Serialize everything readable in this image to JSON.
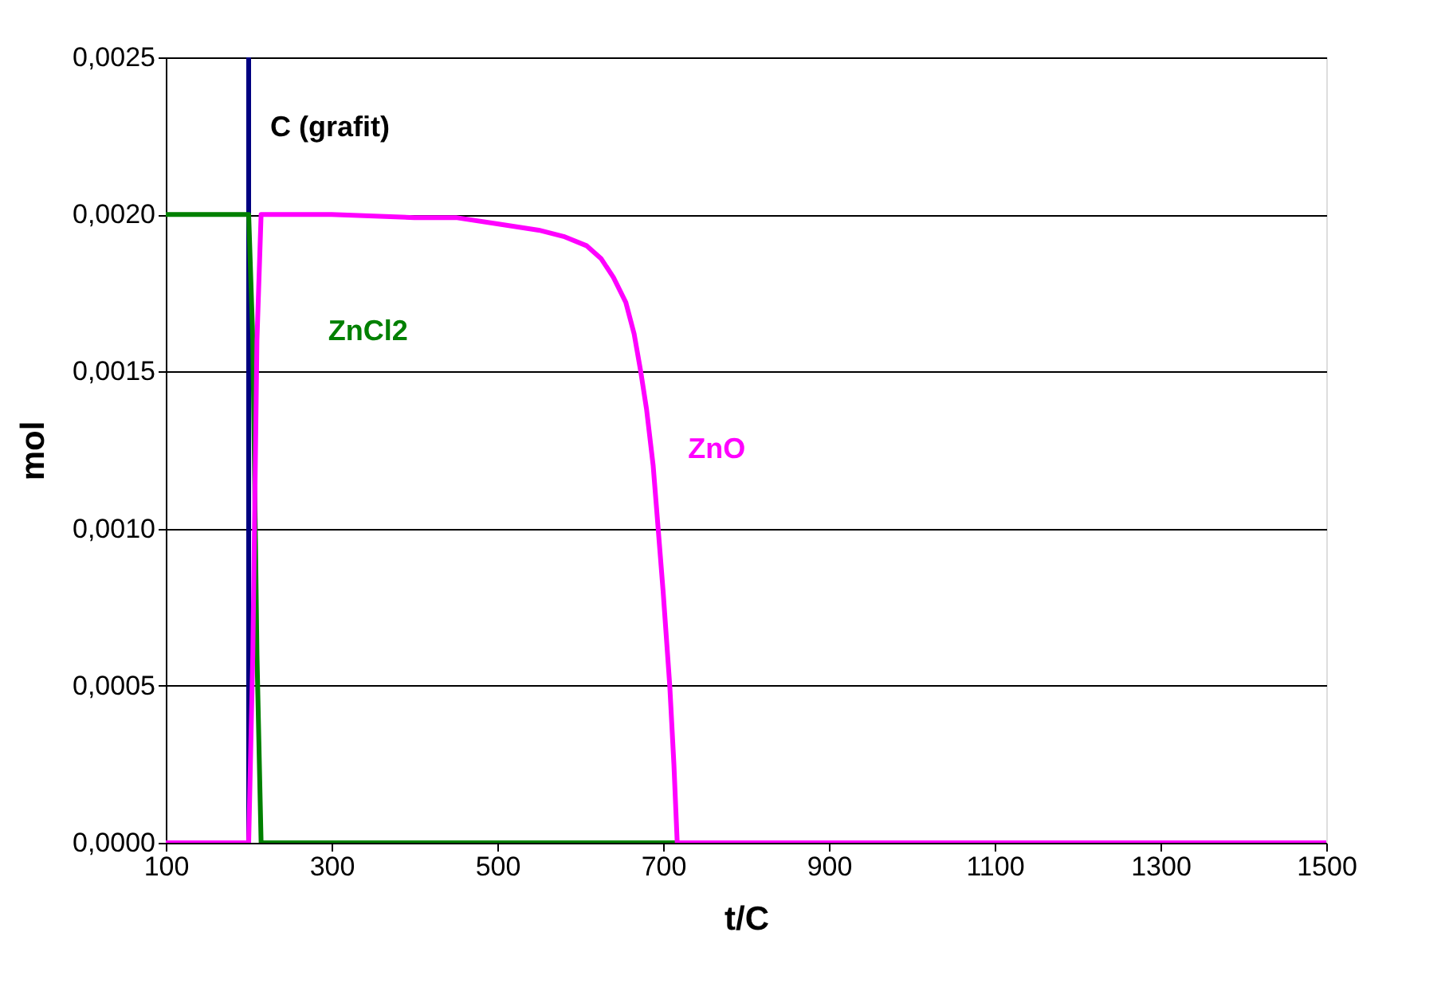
{
  "chart_data": {
    "type": "line",
    "xlabel": "t/C",
    "ylabel": "mol",
    "xlim": [
      100,
      1500
    ],
    "xticks": [
      100,
      300,
      500,
      700,
      900,
      1100,
      1300,
      1500
    ],
    "ylim": [
      0,
      0.0025
    ],
    "yticks": [
      {
        "value": 0,
        "label": "0,0000"
      },
      {
        "value": 0.0005,
        "label": "0,0005"
      },
      {
        "value": 0.001,
        "label": "0,0010"
      },
      {
        "value": 0.0015,
        "label": "0,0015"
      },
      {
        "value": 0.002,
        "label": "0,0020"
      },
      {
        "value": 0.0025,
        "label": "0,0025"
      }
    ],
    "grid": "y",
    "marker": "none",
    "line_style": "solid",
    "series": [
      {
        "color": "#000080",
        "x": [
          200,
          200
        ],
        "values": [
          0.0025,
          0
        ]
      },
      {
        "color": "#008000",
        "x": [
          100,
          200,
          205,
          210,
          215,
          1500
        ],
        "values": [
          0.002,
          0.002,
          0.0016,
          0.0006,
          0,
          0
        ]
      },
      {
        "color": "#ff00ff",
        "x": [
          100,
          200,
          205,
          210,
          215,
          300,
          400,
          450,
          500,
          550,
          580,
          608,
          625,
          640,
          655,
          665,
          673,
          680,
          688,
          694,
          700,
          708,
          713,
          717,
          1500
        ],
        "values": [
          0,
          0,
          0.0006,
          0.0016,
          0.002,
          0.002,
          0.00199,
          0.00199,
          0.00197,
          0.00195,
          0.00193,
          0.0019,
          0.00186,
          0.0018,
          0.00172,
          0.00162,
          0.0015,
          0.00138,
          0.0012,
          0.001,
          0.0008,
          0.0005,
          0.00025,
          0,
          0
        ]
      }
    ],
    "annotations": [
      "C (grafit)",
      "ZnCl2",
      "ZnO"
    ]
  }
}
